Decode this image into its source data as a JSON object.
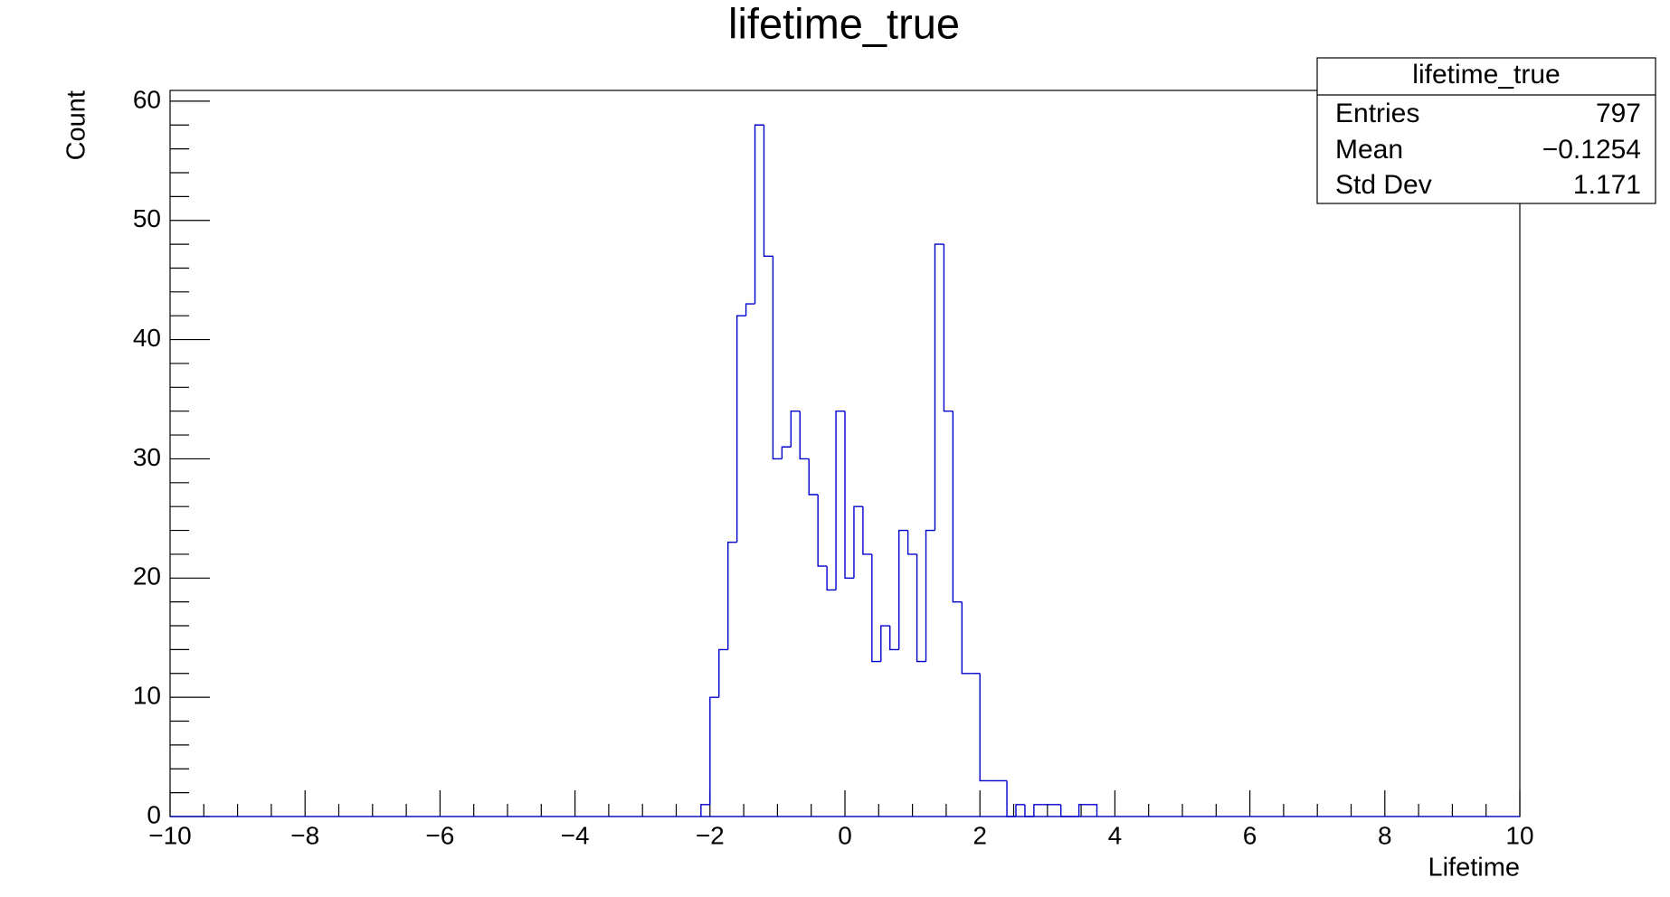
{
  "chart_data": {
    "type": "histogram",
    "title": "lifetime_true",
    "x_label": "Lifetime",
    "y_label": "Count",
    "color": "#0000cc",
    "bins": [
      -2.1333,
      -2,
      -1.8667,
      -1.7333,
      -1.6,
      -1.4667,
      -1.3333,
      -1.2,
      -1.0667,
      -0.9333,
      -0.8,
      -0.6667,
      -0.5333,
      -0.4,
      -0.2667,
      -0.1333,
      0,
      0.1333,
      0.2667,
      0.4,
      0.5333,
      0.6667,
      0.8,
      0.9333,
      1.0667,
      1.2,
      1.3333,
      1.4667,
      1.6,
      1.7333,
      1.8667,
      2,
      2.1333,
      2.2667,
      2.4,
      2.5333,
      2.6667,
      2.8,
      2.9333,
      3.0667,
      3.2,
      3.3333,
      3.4667,
      3.6,
      3.7333
    ],
    "values": [
      1,
      10,
      14,
      23,
      42,
      43,
      58,
      47,
      30,
      31,
      34,
      30,
      27,
      21,
      19,
      34,
      20,
      26,
      22,
      13,
      16,
      14,
      24,
      22,
      13,
      24,
      48,
      34,
      18,
      12,
      12,
      3,
      3,
      3,
      0,
      1,
      0,
      1,
      1,
      1,
      0,
      0,
      1,
      1
    ],
    "xlim": [
      -10,
      10
    ],
    "xticks": [
      {
        "value": -10,
        "label": "−10"
      },
      {
        "value": -8,
        "label": "−8"
      },
      {
        "value": -6,
        "label": "−6"
      },
      {
        "value": -4,
        "label": "−4"
      },
      {
        "value": -2,
        "label": "−2"
      },
      0,
      2,
      4,
      6,
      8,
      10
    ],
    "ylim": [
      0,
      60.9
    ],
    "yticks": [
      0,
      10,
      20,
      30,
      40,
      50,
      60
    ],
    "stats": {
      "title": "lifetime_true",
      "rows": [
        {
          "label": "Entries",
          "value": "797"
        },
        {
          "label": "Mean",
          "value": "−0.1254"
        },
        {
          "label": "Std Dev",
          "value": "1.171"
        }
      ]
    }
  }
}
